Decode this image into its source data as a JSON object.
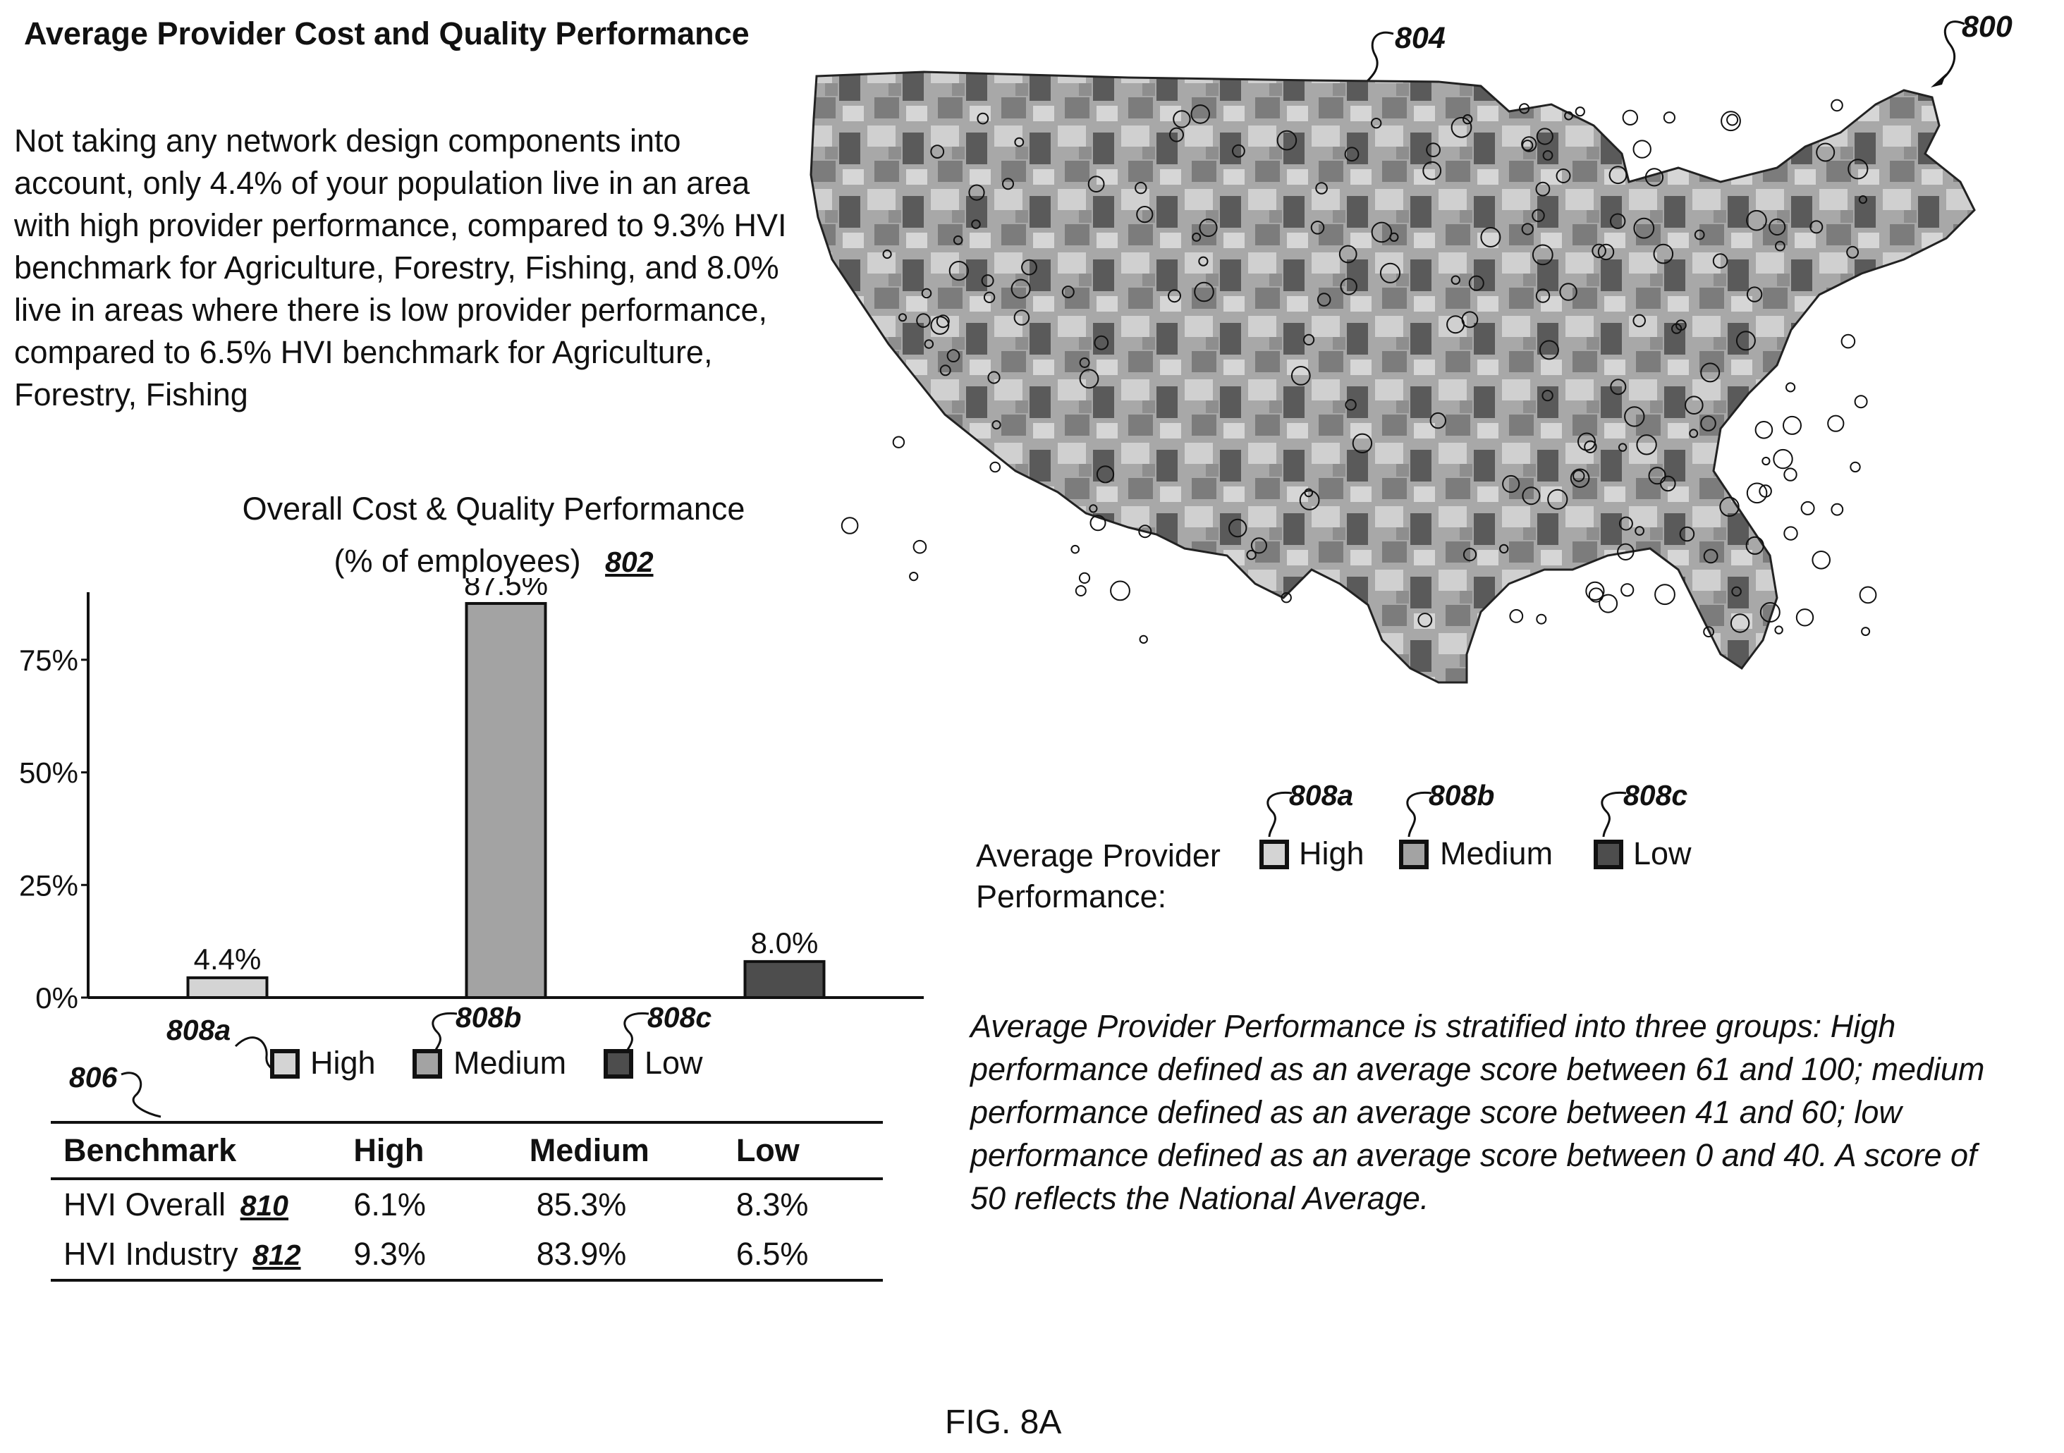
{
  "page": {
    "title": "Average Provider Cost and Quality Performance",
    "intro": "Not taking any network design components into account, only 4.4% of your population live in an area with high provider performance, compared to 9.3% HVI benchmark for Agriculture, Forestry, Fishing, and 8.0% live in areas where there is low provider performance, compared to 6.5% HVI benchmark for Agriculture, Forestry, Fishing",
    "figure_number_label": "800",
    "map_label": "804",
    "caption": "FIG. 8A"
  },
  "chart_data": {
    "type": "bar",
    "title": "Overall Cost & Quality Performance",
    "subtitle": "(% of employees)",
    "ref_label": "802",
    "categories": [
      "High",
      "Medium",
      "Low"
    ],
    "values": [
      4.4,
      87.5,
      8.0
    ],
    "value_labels": [
      "4.4%",
      "87.5%",
      "8.0%"
    ],
    "ylim": [
      0,
      90
    ],
    "yticks": [
      0,
      25,
      50,
      75
    ],
    "ytick_labels": [
      "0%",
      "25%",
      "50%",
      "75%"
    ],
    "xlabel": "",
    "ylabel": "",
    "colors": [
      "#d4d4d4",
      "#a3a3a3",
      "#4d4d4d"
    ],
    "legend": [
      {
        "ref": "808a",
        "label": "High"
      },
      {
        "ref": "808b",
        "label": "Medium"
      },
      {
        "ref": "808c",
        "label": "Low"
      }
    ]
  },
  "map_legend": {
    "title_line1": "Average Provider",
    "title_line2": "Performance:",
    "items": [
      {
        "ref": "808a",
        "label": "High",
        "color": "#d4d4d4"
      },
      {
        "ref": "808b",
        "label": "Medium",
        "color": "#a3a3a3"
      },
      {
        "ref": "808c",
        "label": "Low",
        "color": "#4d4d4d"
      }
    ]
  },
  "benchmark_table": {
    "ref": "806",
    "headers": [
      "Benchmark",
      "High",
      "Medium",
      "Low"
    ],
    "rows": [
      {
        "name": "HVI Overall",
        "ref": "810",
        "high": "6.1%",
        "medium": "85.3%",
        "low": "8.3%"
      },
      {
        "name": "HVI Industry",
        "ref": "812",
        "high": "9.3%",
        "medium": "83.9%",
        "low": "6.5%"
      }
    ]
  },
  "note": "Average Provider Performance is stratified into three groups: High performance defined as an average score between 61 and 100; medium performance defined as an average score between 41 and 60; low performance defined as an average score between 0 and 40. A score of 50 reflects the National Average."
}
